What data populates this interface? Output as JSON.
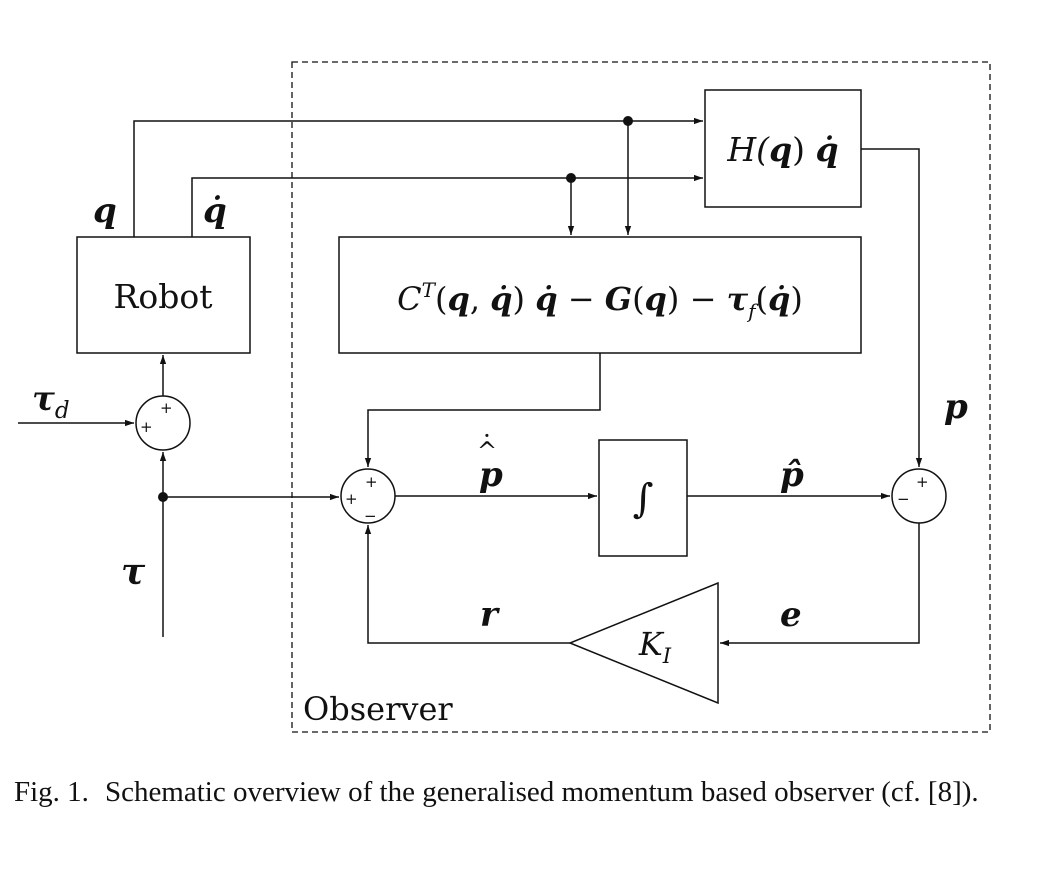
{
  "labels": {
    "robot": "Robot",
    "observer": "Observer",
    "q": "q",
    "q_dot": "q̇",
    "tau": "τ",
    "tau_d_main": "τ",
    "tau_d_sub": "d",
    "p": "p",
    "p_hat": "p̂",
    "p_hat_dot_main": "p",
    "r": "r",
    "e": "e",
    "ki_main": "K",
    "ki_sub": "I",
    "integral": "∫"
  },
  "blocks": {
    "h_block": {
      "H": "H(",
      "q1": "q",
      "close": ")",
      "q2": "q̇"
    },
    "c_block": {
      "C": "C",
      "T": "T",
      "open": "(",
      "q1": "q",
      "comma": ", ",
      "q2": "q̇",
      "close": ")",
      "q3": "q̇",
      "minus1": " − ",
      "G": "G",
      "open2": "(",
      "q4": "q",
      "close2": ")",
      "minus2": " − ",
      "tau": "τ",
      "f": "f",
      "open3": "(",
      "q5": "q̇",
      "close3": ")"
    }
  },
  "signs": {
    "plus": "+",
    "minus": "−"
  },
  "caption": {
    "label": "Fig. 1.",
    "text": "Schematic overview of the generalised momentum based observer (cf. [8])."
  }
}
